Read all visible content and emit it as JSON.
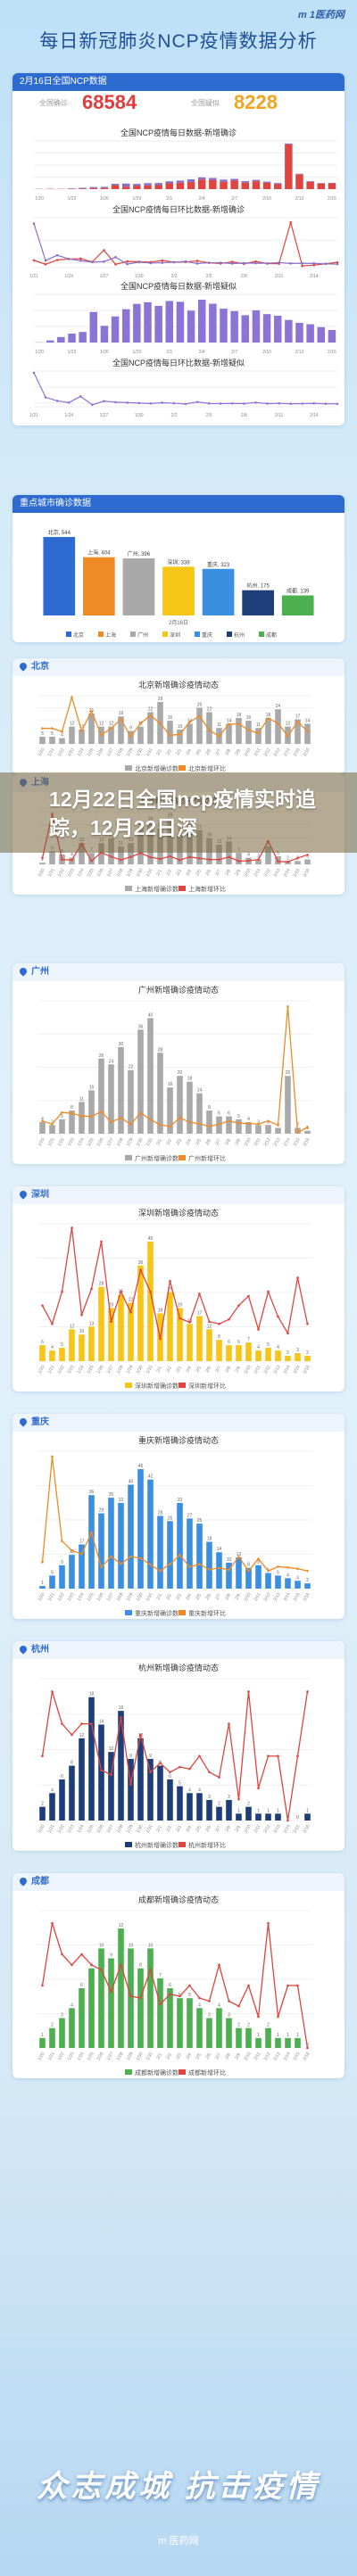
{
  "header": {
    "logo": "m 1医药网",
    "title": "每日新冠肺炎NCP疫情数据分析"
  },
  "summary": {
    "date_label": "2月16日全国NCP数据",
    "confirmed_label": "全国确诊",
    "confirmed_value": "68584",
    "suspected_label": "全国疑似",
    "suspected_value": "8228",
    "colors": {
      "confirmed": "#e23b3b",
      "suspected": "#f0a520"
    }
  },
  "overlay": {
    "text": "12月22日全国ncp疫情实时追踪，12月22日深"
  },
  "footer": {
    "slogan": "众志成城 抗击疫情",
    "logo": "m 医药网"
  },
  "sections": {
    "key_cities_label": "重点城市确诊数据",
    "beijing_label": "北京",
    "shanghai_label": "上海",
    "guangzhou_label": "广州",
    "shenzhen_label": "深圳",
    "chongqing_label": "重庆",
    "hangzhou_label": "杭州",
    "chengdu_label": "成都"
  },
  "chart_data": [
    {
      "type": "bar",
      "title": "全国NCP疫情每日数据-新增确诊",
      "categories": [
        "1/20",
        "1/21",
        "1/22",
        "1/23",
        "1/24",
        "1/25",
        "1/26",
        "1/27",
        "1/28",
        "1/29",
        "1/30",
        "1/31",
        "2/1",
        "2/2",
        "2/3",
        "2/4",
        "2/5",
        "2/6",
        "2/7",
        "2/8",
        "2/9",
        "2/10",
        "2/11",
        "2/12",
        "2/13",
        "2/14",
        "2/15",
        "2/16"
      ],
      "series": [
        {
          "name": "湖北",
          "values": [
            72,
            105,
            69,
            105,
            180,
            323,
            371,
            1291,
            840,
            1032,
            1220,
            1347,
            1921,
            2103,
            2345,
            3156,
            2987,
            2447,
            2841,
            2147,
            2618,
            2097,
            1638,
            14840,
            4823,
            2420,
            1843,
            1933
          ]
        },
        {
          "name": "其他",
          "values": [
            5,
            44,
            62,
            153,
            264,
            365,
            398,
            480,
            1000,
            700,
            760,
            688,
            669,
            726,
            890,
            731,
            707,
            696,
            558,
            509,
            444,
            381,
            377,
            312,
            267,
            221,
            166,
            115
          ]
        }
      ],
      "colors": [
        "#e0443e",
        "#8b6fc7"
      ],
      "ylim": [
        0,
        16000
      ]
    },
    {
      "type": "line",
      "title": "全国NCP疫情每日环比数据-新增确诊",
      "x": [
        "1/21",
        "1/22",
        "1/23",
        "1/24",
        "1/25",
        "1/26",
        "1/27",
        "1/28",
        "1/29",
        "1/30",
        "1/31",
        "2/1",
        "2/2",
        "2/3",
        "2/4",
        "2/5",
        "2/6",
        "2/7",
        "2/8",
        "2/9",
        "2/10",
        "2/11",
        "2/12",
        "2/13",
        "2/14",
        "2/15",
        "2/16"
      ],
      "series": [
        {
          "name": "湖北",
          "values": [
            45,
            -34,
            52,
            71,
            79,
            15,
            248,
            -35,
            23,
            18,
            10,
            43,
            9,
            12,
            35,
            -5,
            -18,
            16,
            -24,
            22,
            -20,
            -22,
            806,
            -67,
            -50,
            -24,
            5
          ]
        },
        {
          "name": "其他",
          "values": [
            780,
            41,
            147,
            73,
            38,
            9,
            21,
            108,
            -30,
            9,
            -10,
            -3,
            9,
            23,
            -18,
            -3,
            -2,
            -20,
            -9,
            -13,
            -14,
            -1,
            -17,
            -14,
            -17,
            -25,
            -31
          ]
        }
      ],
      "colors": [
        "#e0443e",
        "#8b6fc7"
      ],
      "ylim": [
        -100,
        900
      ]
    },
    {
      "type": "bar",
      "title": "全国NCP疫情每日数据-新增疑似",
      "categories": [
        "1/20",
        "1/21",
        "1/22",
        "1/23",
        "1/24",
        "1/25",
        "1/26",
        "1/27",
        "1/28",
        "1/29",
        "1/30",
        "1/31",
        "2/1",
        "2/2",
        "2/3",
        "2/4",
        "2/5",
        "2/6",
        "2/7",
        "2/8",
        "2/9",
        "2/10",
        "2/11",
        "2/12",
        "2/13",
        "2/14",
        "2/15",
        "2/16"
      ],
      "series": [
        {
          "name": "全国",
          "values": [
            27,
            257,
            680,
            1118,
            1309,
            3806,
            2077,
            3248,
            4148,
            4812,
            5019,
            4562,
            5173,
            5072,
            3971,
            5328,
            4833,
            4214,
            3916,
            3399,
            4008,
            3536,
            3342,
            2807,
            2450,
            2277,
            1918,
            1563
          ]
        }
      ],
      "colors": [
        "#8b74d6"
      ],
      "ylim": [
        0,
        6000
      ]
    },
    {
      "type": "line",
      "title": "全国NCP疫情每日环比数据-新增疑似",
      "x": [
        "1/21",
        "1/22",
        "1/23",
        "1/24",
        "1/25",
        "1/26",
        "1/27",
        "1/28",
        "1/29",
        "1/30",
        "1/31",
        "2/1",
        "2/2",
        "2/3",
        "2/4",
        "2/5",
        "2/6",
        "2/7",
        "2/8",
        "2/9",
        "2/10",
        "2/11",
        "2/12",
        "2/13",
        "2/14",
        "2/15",
        "2/16"
      ],
      "series": [
        {
          "name": "全国",
          "values": [
            852,
            165,
            64,
            17,
            191,
            -45,
            56,
            28,
            16,
            4,
            -9,
            13,
            -2,
            -22,
            34,
            -9,
            -13,
            -7,
            -13,
            18,
            -12,
            -5,
            -16,
            -13,
            -7,
            -16,
            -19
          ]
        }
      ],
      "colors": [
        "#8b74d6"
      ],
      "ylim": [
        -100,
        900
      ]
    },
    {
      "type": "bar",
      "title": "重点城市确诊数据",
      "categories": [
        "北京",
        "上海",
        "广州",
        "深圳",
        "重庆",
        "杭州",
        "成都"
      ],
      "values": [
        544,
        404,
        396,
        338,
        323,
        175,
        139
      ],
      "colors": [
        "#2e6bd1",
        "#f08a24",
        "#a9a9a9",
        "#f5c518",
        "#3a8fe0",
        "#1e3e7a",
        "#4caf50"
      ],
      "date_label": "2月16日",
      "ylim": [
        0,
        600
      ]
    },
    {
      "type": "bar",
      "title": "北京新增确诊疫情动态",
      "categories": [
        "1/20",
        "1/21",
        "1/22",
        "1/23",
        "1/24",
        "1/25",
        "1/26",
        "1/27",
        "1/28",
        "1/29",
        "1/30",
        "1/31",
        "2/1",
        "2/2",
        "2/3",
        "2/4",
        "2/5",
        "2/6",
        "2/7",
        "2/8",
        "2/9",
        "2/10",
        "2/11",
        "2/12",
        "2/13",
        "2/14",
        "2/15",
        "2/16"
      ],
      "series": [
        {
          "name": "北京新增确诊数",
          "values": [
            5,
            5,
            4,
            12,
            10,
            21,
            12,
            12,
            19,
            9,
            12,
            22,
            29,
            16,
            10,
            14,
            25,
            22,
            11,
            14,
            18,
            16,
            11,
            18,
            24,
            12,
            17,
            14
          ]
        },
        {
          "name": "北京新增环比",
          "values": [
            0,
            0,
            -20,
            200,
            -17,
            110,
            -43,
            0,
            58,
            -53,
            33,
            83,
            32,
            -45,
            -38,
            40,
            79,
            -12,
            -50,
            27,
            29,
            -11,
            -31,
            64,
            33,
            -50,
            42,
            -18
          ]
        }
      ],
      "colors": [
        "#a9a9a9",
        "#f08a24"
      ]
    },
    {
      "type": "bar",
      "title": "上海新增确诊疫情动态",
      "categories": [
        "1/20",
        "1/21",
        "1/22",
        "1/23",
        "1/24",
        "1/25",
        "1/26",
        "1/27",
        "1/28",
        "1/29",
        "1/30",
        "1/31",
        "2/1",
        "2/2",
        "2/3",
        "2/4",
        "2/5",
        "2/6",
        "2/7",
        "2/8",
        "2/9",
        "2/10",
        "2/11",
        "2/12",
        "2/13",
        "2/14",
        "2/15",
        "2/16"
      ],
      "series": [
        {
          "name": "上海新增确诊数",
          "values": [
            1,
            8,
            6,
            4,
            13,
            7,
            13,
            16,
            11,
            13,
            23,
            26,
            22,
            28,
            19,
            22,
            21,
            16,
            12,
            14,
            7,
            4,
            3,
            11,
            5,
            2,
            2,
            3
          ]
        },
        {
          "name": "上海新增环比",
          "values": [
            0,
            700,
            -25,
            -33,
            225,
            -46,
            86,
            23,
            -31,
            18,
            77,
            13,
            -15,
            27,
            -32,
            16,
            -5,
            -24,
            -25,
            17,
            -50,
            -43,
            -25,
            267,
            -55,
            -60,
            0,
            50
          ]
        }
      ],
      "colors": [
        "#a9a9a9",
        "#e0443e"
      ]
    },
    {
      "type": "bar",
      "title": "广州新增确诊疫情动态",
      "categories": [
        "1/20",
        "1/21",
        "1/22",
        "1/23",
        "1/24",
        "1/25",
        "1/26",
        "1/27",
        "1/28",
        "1/29",
        "1/30",
        "1/31",
        "2/1",
        "2/2",
        "2/3",
        "2/4",
        "2/5",
        "2/6",
        "2/7",
        "2/8",
        "2/9",
        "2/10",
        "2/11",
        "2/12",
        "2/13",
        "2/14",
        "2/15",
        "2/16"
      ],
      "series": [
        {
          "name": "广州新增确诊数",
          "values": [
            4,
            3,
            5,
            8,
            11,
            15,
            26,
            24,
            30,
            22,
            36,
            40,
            28,
            16,
            20,
            18,
            14,
            8,
            6,
            6,
            5,
            4,
            3,
            3,
            2,
            20,
            2,
            1
          ]
        },
        {
          "name": "广州新增环比",
          "values": [
            0,
            -25,
            67,
            60,
            38,
            36,
            73,
            -8,
            25,
            -27,
            64,
            11,
            -30,
            -43,
            25,
            -10,
            -22,
            -43,
            -25,
            0,
            -17,
            -20,
            -25,
            0,
            -33,
            900,
            -90,
            -50
          ]
        }
      ],
      "colors": [
        "#a9a9a9",
        "#f08a24"
      ]
    },
    {
      "type": "bar",
      "title": "深圳新增确诊疫情动态",
      "categories": [
        "1/20",
        "1/21",
        "1/22",
        "1/23",
        "1/24",
        "1/25",
        "1/26",
        "1/27",
        "1/28",
        "1/29",
        "1/30",
        "1/31",
        "2/1",
        "2/2",
        "2/3",
        "2/4",
        "2/5",
        "2/6",
        "2/7",
        "2/8",
        "2/9",
        "2/10",
        "2/11",
        "2/12",
        "2/13",
        "2/14",
        "2/15",
        "2/16"
      ],
      "series": [
        {
          "name": "深圳新增确诊数",
          "values": [
            6,
            4,
            5,
            12,
            10,
            13,
            28,
            20,
            25,
            22,
            36,
            45,
            18,
            26,
            20,
            14,
            17,
            12,
            8,
            6,
            6,
            7,
            4,
            5,
            4,
            2,
            3,
            2
          ]
        },
        {
          "name": "深圳新增环比",
          "values": [
            0,
            -33,
            25,
            140,
            -17,
            30,
            115,
            -29,
            25,
            -12,
            64,
            25,
            -60,
            44,
            -23,
            -30,
            21,
            -29,
            -33,
            -25,
            0,
            17,
            -43,
            25,
            -20,
            -50,
            50,
            -33
          ]
        }
      ],
      "colors": [
        "#f5c518",
        "#e0443e"
      ]
    },
    {
      "type": "bar",
      "title": "重庆新增确诊疫情动态",
      "categories": [
        "1/20",
        "1/21",
        "1/22",
        "1/23",
        "1/24",
        "1/25",
        "1/26",
        "1/27",
        "1/28",
        "1/29",
        "1/30",
        "1/31",
        "2/1",
        "2/2",
        "2/3",
        "2/4",
        "2/5",
        "2/6",
        "2/7",
        "2/8",
        "2/9",
        "2/10",
        "2/11",
        "2/12",
        "2/13",
        "2/14",
        "2/15",
        "2/16"
      ],
      "series": [
        {
          "name": "重庆新增确诊数",
          "values": [
            1,
            5,
            9,
            13,
            17,
            36,
            29,
            35,
            33,
            40,
            46,
            42,
            28,
            26,
            33,
            27,
            25,
            18,
            14,
            10,
            12,
            8,
            9,
            6,
            5,
            4,
            3,
            2
          ]
        },
        {
          "name": "重庆新增环比",
          "values": [
            0,
            400,
            80,
            44,
            31,
            112,
            -19,
            21,
            -6,
            21,
            15,
            -9,
            -33,
            -7,
            27,
            -18,
            -7,
            -28,
            -22,
            -29,
            20,
            -33,
            13,
            -33,
            -17,
            -20,
            -25,
            -33
          ]
        }
      ],
      "colors": [
        "#3a8fe0",
        "#f08a24"
      ]
    },
    {
      "type": "bar",
      "title": "杭州新增确诊疫情动态",
      "categories": [
        "1/20",
        "1/21",
        "1/22",
        "1/23",
        "1/24",
        "1/25",
        "1/26",
        "1/27",
        "1/28",
        "1/29",
        "1/30",
        "1/31",
        "2/1",
        "2/2",
        "2/3",
        "2/4",
        "2/5",
        "2/6",
        "2/7",
        "2/8",
        "2/9",
        "2/10",
        "2/11",
        "2/12",
        "2/13",
        "2/14",
        "2/15",
        "2/16"
      ],
      "series": [
        {
          "name": "杭州新增确诊数",
          "values": [
            2,
            4,
            6,
            8,
            12,
            18,
            14,
            10,
            16,
            9,
            12,
            9,
            8,
            6,
            5,
            4,
            4,
            3,
            2,
            3,
            1,
            2,
            1,
            1,
            1,
            0,
            0,
            1
          ]
        },
        {
          "name": "杭州新增环比",
          "values": [
            0,
            100,
            50,
            33,
            50,
            50,
            -22,
            -29,
            60,
            -44,
            33,
            -25,
            -11,
            -25,
            -17,
            -20,
            0,
            -25,
            -33,
            50,
            -67,
            100,
            -50,
            0,
            0,
            -100,
            0,
            100
          ]
        }
      ],
      "colors": [
        "#1e3e7a",
        "#e0443e"
      ]
    },
    {
      "type": "bar",
      "title": "成都新增确诊疫情动态",
      "categories": [
        "1/20",
        "1/21",
        "1/22",
        "1/23",
        "1/24",
        "1/25",
        "1/26",
        "1/27",
        "1/28",
        "1/29",
        "1/30",
        "1/31",
        "2/1",
        "2/2",
        "2/3",
        "2/4",
        "2/5",
        "2/6",
        "2/7",
        "2/8",
        "2/9",
        "2/10",
        "2/11",
        "2/12",
        "2/13",
        "2/14",
        "2/15",
        "2/16"
      ],
      "series": [
        {
          "name": "成都新增确诊数",
          "values": [
            1,
            2,
            3,
            4,
            6,
            8,
            10,
            9,
            12,
            10,
            8,
            10,
            7,
            6,
            5,
            5,
            4,
            3,
            4,
            3,
            2,
            2,
            1,
            2,
            1,
            1,
            1,
            0
          ]
        },
        {
          "name": "成都新增环比",
          "values": [
            0,
            100,
            50,
            33,
            50,
            33,
            25,
            -10,
            33,
            -17,
            -20,
            25,
            -30,
            -14,
            -17,
            0,
            -20,
            -25,
            33,
            -25,
            -33,
            0,
            -50,
            100,
            -50,
            0,
            0,
            -100
          ]
        }
      ],
      "colors": [
        "#4caf50",
        "#e0443e"
      ]
    }
  ]
}
